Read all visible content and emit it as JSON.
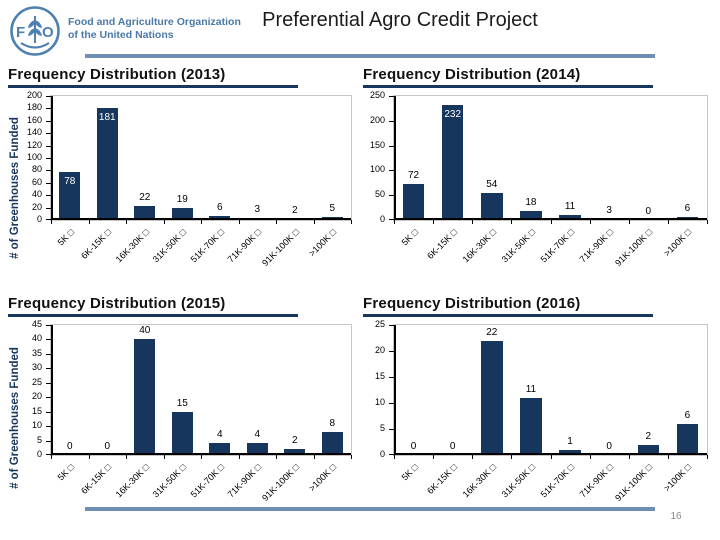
{
  "header": {
    "org_line1": "Food and Agriculture Organization",
    "org_line2": "of the United Nations",
    "title": "Preferential Agro Credit Project"
  },
  "footer": {
    "page_number": "16"
  },
  "colors": {
    "bar": "#16365D",
    "navy_accent": "#17375E",
    "divider_blue": "#6F8EB4",
    "fao_blue": "#4E81B0",
    "plot_border": "#C6C6C6",
    "inside_label": "#FFFFFF",
    "outside_label": "#000000"
  },
  "chart_data": [
    {
      "type": "bar",
      "year": "2013",
      "title": "Frequency Distribution (2013)",
      "ylabel": "# of Greenhouses Funded",
      "xlabel": "",
      "categories": [
        "5K □",
        "6K-15K □",
        "16K-30K □",
        "31K-50K □",
        "51K-70K □",
        "71K-90K □",
        "91K-100K □",
        ">100K □"
      ],
      "values": [
        78,
        181,
        22,
        19,
        6,
        3,
        2,
        5
      ],
      "inside_value_labels": [
        true,
        true,
        false,
        false,
        false,
        false,
        false,
        false
      ],
      "ylim": [
        0,
        200
      ],
      "ytick_step": 20,
      "grid": false,
      "legend": "none"
    },
    {
      "type": "bar",
      "year": "2014",
      "title": "Frequency Distribution (2014)",
      "ylabel": "",
      "xlabel": "",
      "categories": [
        "5K □",
        "6K-15K □",
        "16K-30K □",
        "31K-50K □",
        "51K-70K □",
        "71K-90K □",
        "91K-100K □",
        ">100K □"
      ],
      "values": [
        72,
        232,
        54,
        18,
        11,
        3,
        0,
        6
      ],
      "inside_value_labels": [
        false,
        true,
        false,
        false,
        false,
        false,
        false,
        false
      ],
      "ylim": [
        0,
        250
      ],
      "ytick_step": 50,
      "grid": false,
      "legend": "none"
    },
    {
      "type": "bar",
      "year": "2015",
      "title": "Frequency Distribution (2015)",
      "ylabel": "# of Greenhouses Funded",
      "xlabel": "",
      "categories": [
        "5K □",
        "6K-15K □",
        "16K-30K □",
        "31K-50K □",
        "51K-70K □",
        "71K-90K □",
        "91K-100K □",
        ">100K □"
      ],
      "values": [
        0,
        0,
        40,
        15,
        4,
        4,
        2,
        8
      ],
      "inside_value_labels": [
        false,
        false,
        false,
        false,
        false,
        false,
        false,
        false
      ],
      "ylim": [
        0,
        45
      ],
      "ytick_step": 5,
      "grid": false,
      "legend": "none"
    },
    {
      "type": "bar",
      "year": "2016",
      "title": "Frequency Distribution (2016)",
      "ylabel": "",
      "xlabel": "",
      "categories": [
        "5K □",
        "6K-15K □",
        "16K-30K □",
        "31K-50K □",
        "51K-70K □",
        "71K-90K □",
        "91K-100K □",
        ">100K □"
      ],
      "values": [
        0,
        0,
        22,
        11,
        1,
        0,
        2,
        6
      ],
      "inside_value_labels": [
        false,
        false,
        false,
        false,
        false,
        false,
        false,
        false
      ],
      "ylim": [
        0,
        25
      ],
      "ytick_step": 5,
      "grid": false,
      "legend": "none"
    }
  ]
}
